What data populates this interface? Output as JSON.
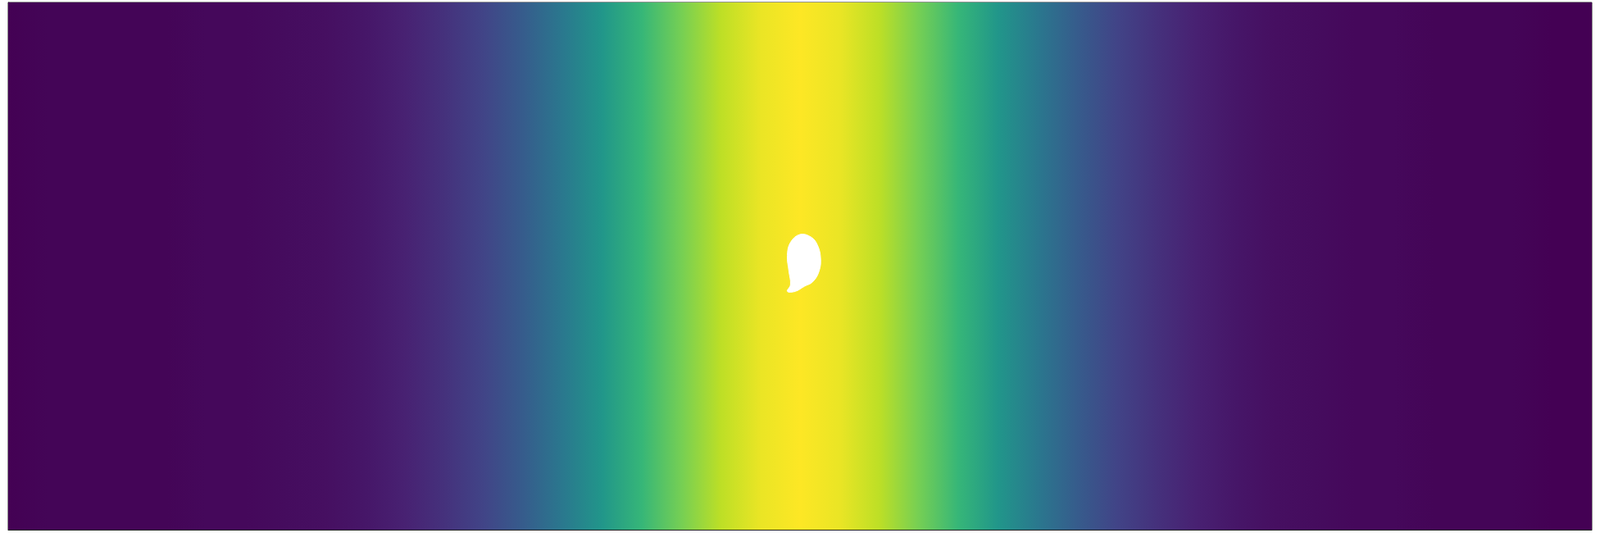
{
  "chart_data": {
    "type": "field",
    "color": "viridis",
    "tick_labels": false,
    "grid": false,
    "xlim": [
      0,
      1
    ],
    "ylim": [
      0,
      1
    ],
    "x": [
      0,
      0.025,
      0.05,
      0.075,
      0.1,
      0.125,
      0.15,
      0.175,
      0.2,
      0.225,
      0.25,
      0.275,
      0.3,
      0.325,
      0.35,
      0.375,
      0.4,
      0.425,
      0.45,
      0.475,
      0.5,
      0.525,
      0.55,
      0.575,
      0.6,
      0.625,
      0.65,
      0.675,
      0.7,
      0.725,
      0.75,
      0.775,
      0.8,
      0.825,
      0.85,
      0.875,
      0.9,
      0.925,
      0.95,
      0.975,
      1
    ],
    "values": [
      0.0,
      0.01,
      0.01,
      0.01,
      0.01,
      0.02,
      0.02,
      0.03,
      0.04,
      0.06,
      0.09,
      0.14,
      0.2,
      0.29,
      0.4,
      0.52,
      0.66,
      0.79,
      0.9,
      0.97,
      1.0,
      0.97,
      0.9,
      0.79,
      0.66,
      0.52,
      0.4,
      0.29,
      0.2,
      0.14,
      0.09,
      0.06,
      0.04,
      0.03,
      0.02,
      0.02,
      0.01,
      0.01,
      0.01,
      0.0,
      0.0
    ],
    "obstacle": [
      [
        0.5,
        0.56
      ],
      [
        0.507,
        0.555
      ],
      [
        0.511,
        0.54
      ],
      [
        0.513,
        0.515
      ],
      [
        0.512,
        0.49
      ],
      [
        0.508,
        0.47
      ],
      [
        0.503,
        0.462
      ],
      [
        0.497,
        0.452
      ],
      [
        0.492,
        0.452
      ],
      [
        0.494,
        0.465
      ],
      [
        0.493,
        0.49
      ],
      [
        0.492,
        0.52
      ],
      [
        0.494,
        0.545
      ]
    ]
  }
}
